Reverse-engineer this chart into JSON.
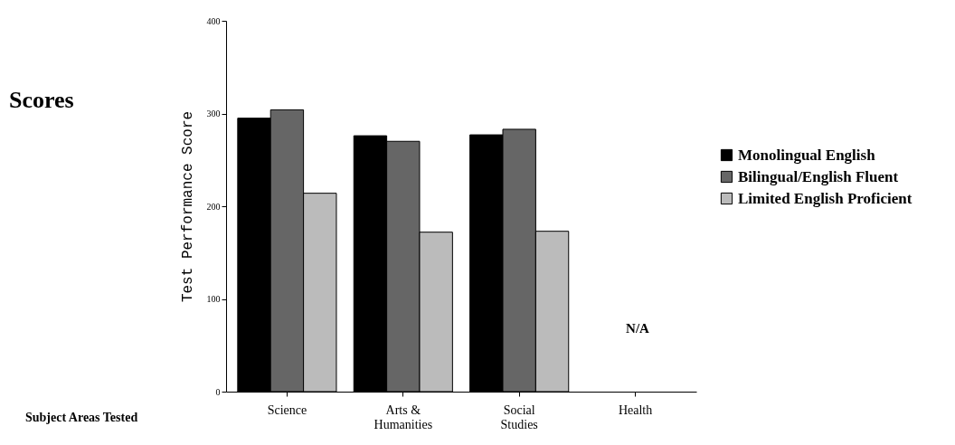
{
  "chart_data": {
    "type": "bar",
    "title": "Scores",
    "ylabel": "Test Performance Score",
    "categories": [
      "Science",
      "Arts & Humanities",
      "Social Studies",
      "Health"
    ],
    "series": [
      {
        "name": "Monolingual English",
        "color": "#000000",
        "values": [
          295,
          276,
          277,
          null
        ]
      },
      {
        "name": "Bilingual/English Fluent",
        "color": "#666666",
        "values": [
          304,
          270,
          283,
          null
        ]
      },
      {
        "name": "Limited English Proficient",
        "color": "#bbbbbb",
        "values": [
          214,
          172,
          173,
          null
        ]
      }
    ],
    "ylim": [
      0,
      400
    ],
    "yticks": [
      0,
      100,
      200,
      300,
      400
    ],
    "grid": false,
    "legend": "right",
    "annotations": [
      "Subject Areas Tested",
      "N/A"
    ]
  }
}
